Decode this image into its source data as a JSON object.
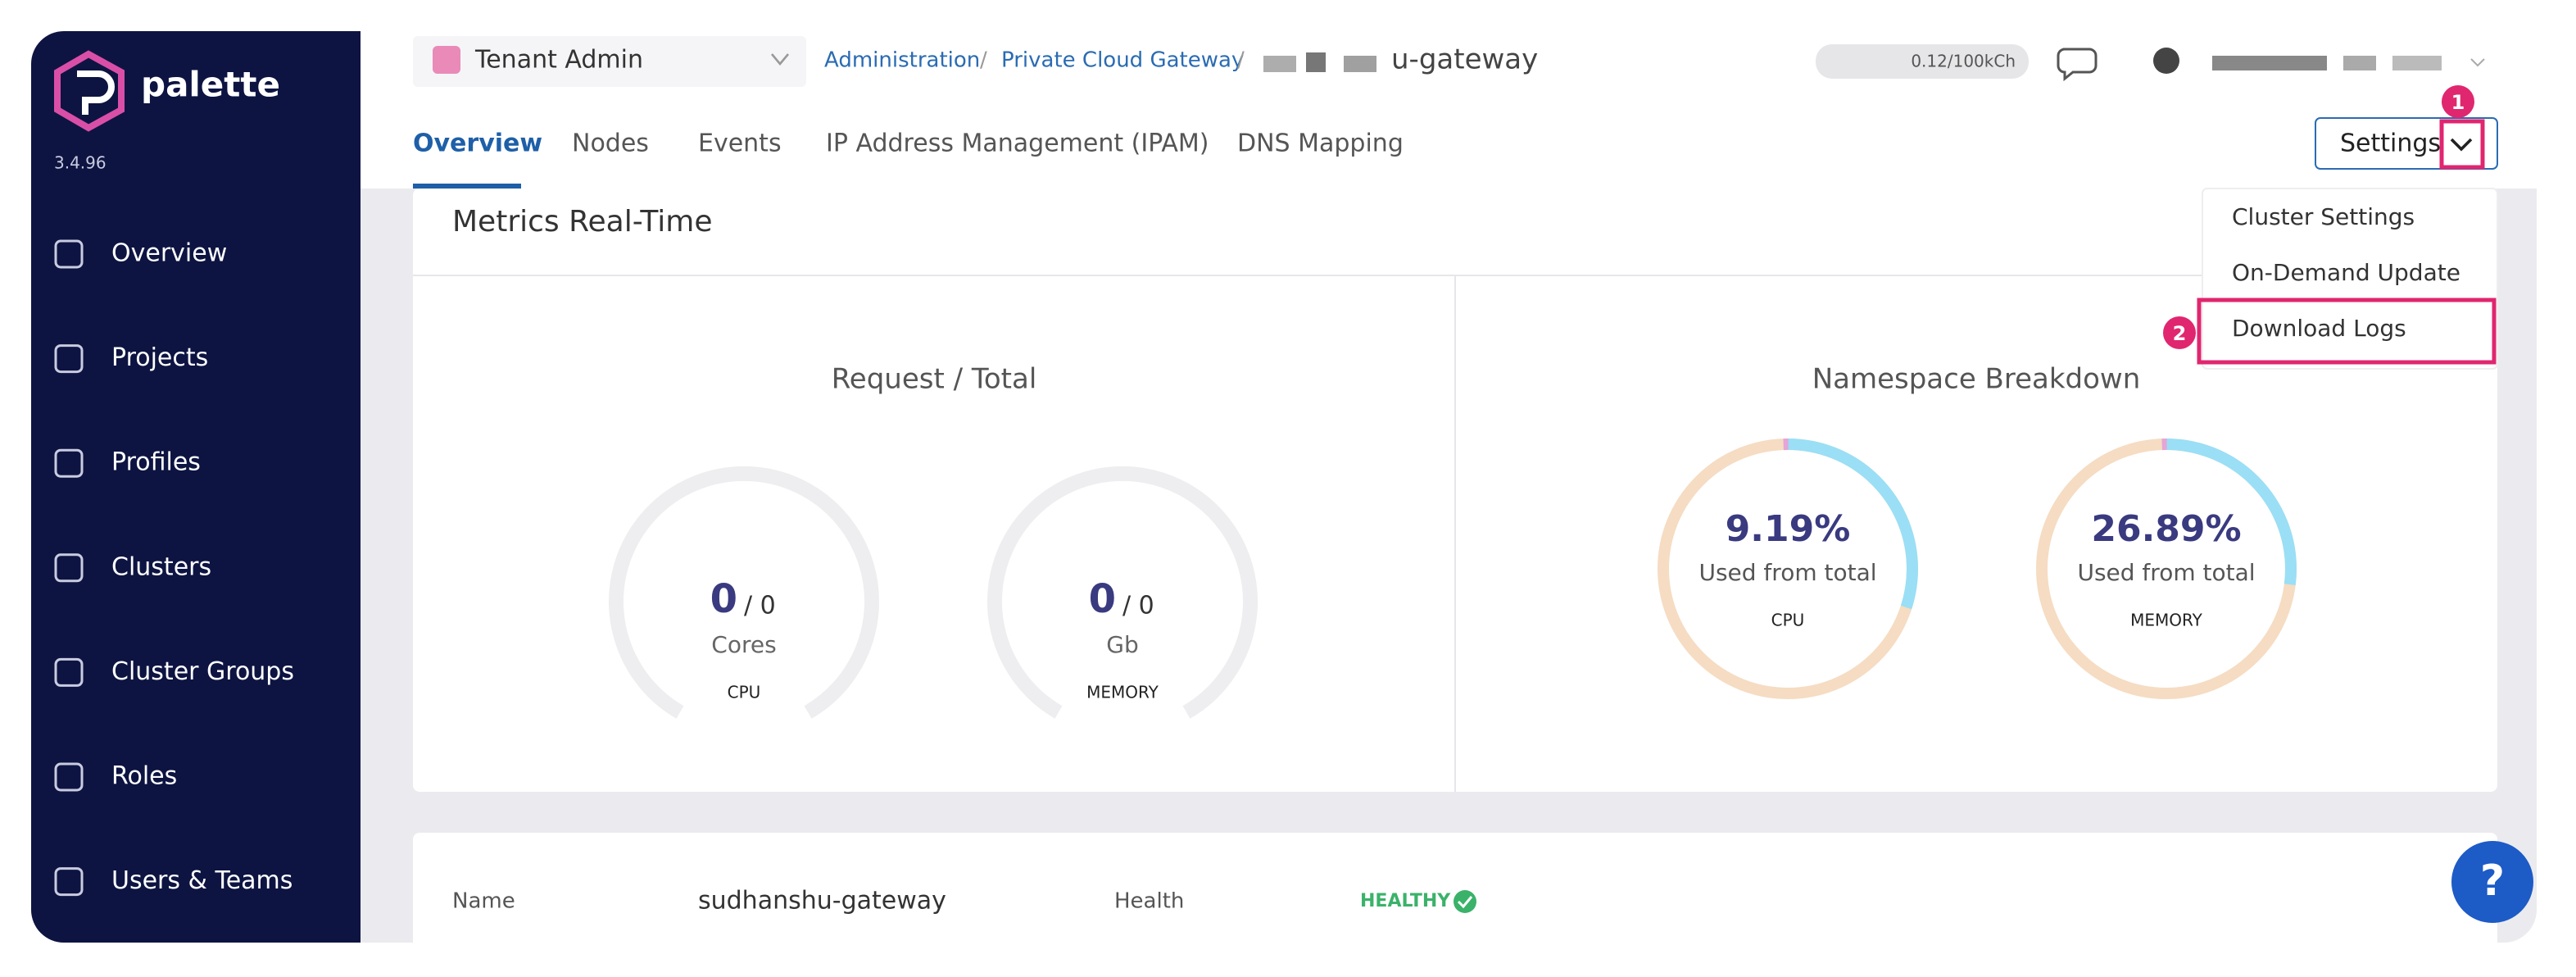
{
  "sidebar": {
    "brand": "palette",
    "version": "3.4.96",
    "menu": [
      "Overview",
      "Projects",
      "Profiles",
      "Clusters",
      "Cluster Groups",
      "Roles",
      "Users & Teams"
    ]
  },
  "header": {
    "tenant": "Tenant Admin",
    "breadcrumbs": [
      "Administration",
      "Private Cloud Gateway"
    ],
    "cluster_suffix": "u-gateway",
    "credits": "0.12/100kCh"
  },
  "tabs": [
    "Overview",
    "Nodes",
    "Events",
    "IP Address Management (IPAM)",
    "DNS Mapping"
  ],
  "settings": {
    "button": "Settings",
    "menu": [
      "Cluster Settings",
      "On-Demand Update",
      "Download Logs"
    ]
  },
  "annotations": [
    "1",
    "2"
  ],
  "metrics": {
    "title": "Metrics Real-Time",
    "request": {
      "title": "Request / Total",
      "gauges": [
        {
          "used": "0",
          "total": "/ 0",
          "unit": "Cores",
          "label": "CPU"
        },
        {
          "used": "0",
          "total": "/ 0",
          "unit": "Gb",
          "label": "MEMORY"
        }
      ]
    },
    "namespace": {
      "title": "Namespace Breakdown",
      "donuts": [
        {
          "percent": "9.19%",
          "caption": "Used from total",
          "label": "CPU"
        },
        {
          "percent": "26.89%",
          "caption": "Used from total",
          "label": "MEMORY"
        }
      ]
    }
  },
  "details": {
    "name_label": "Name",
    "name": "sudhanshu-gateway",
    "health_label": "Health",
    "health": "HEALTHY"
  },
  "help": "?"
}
